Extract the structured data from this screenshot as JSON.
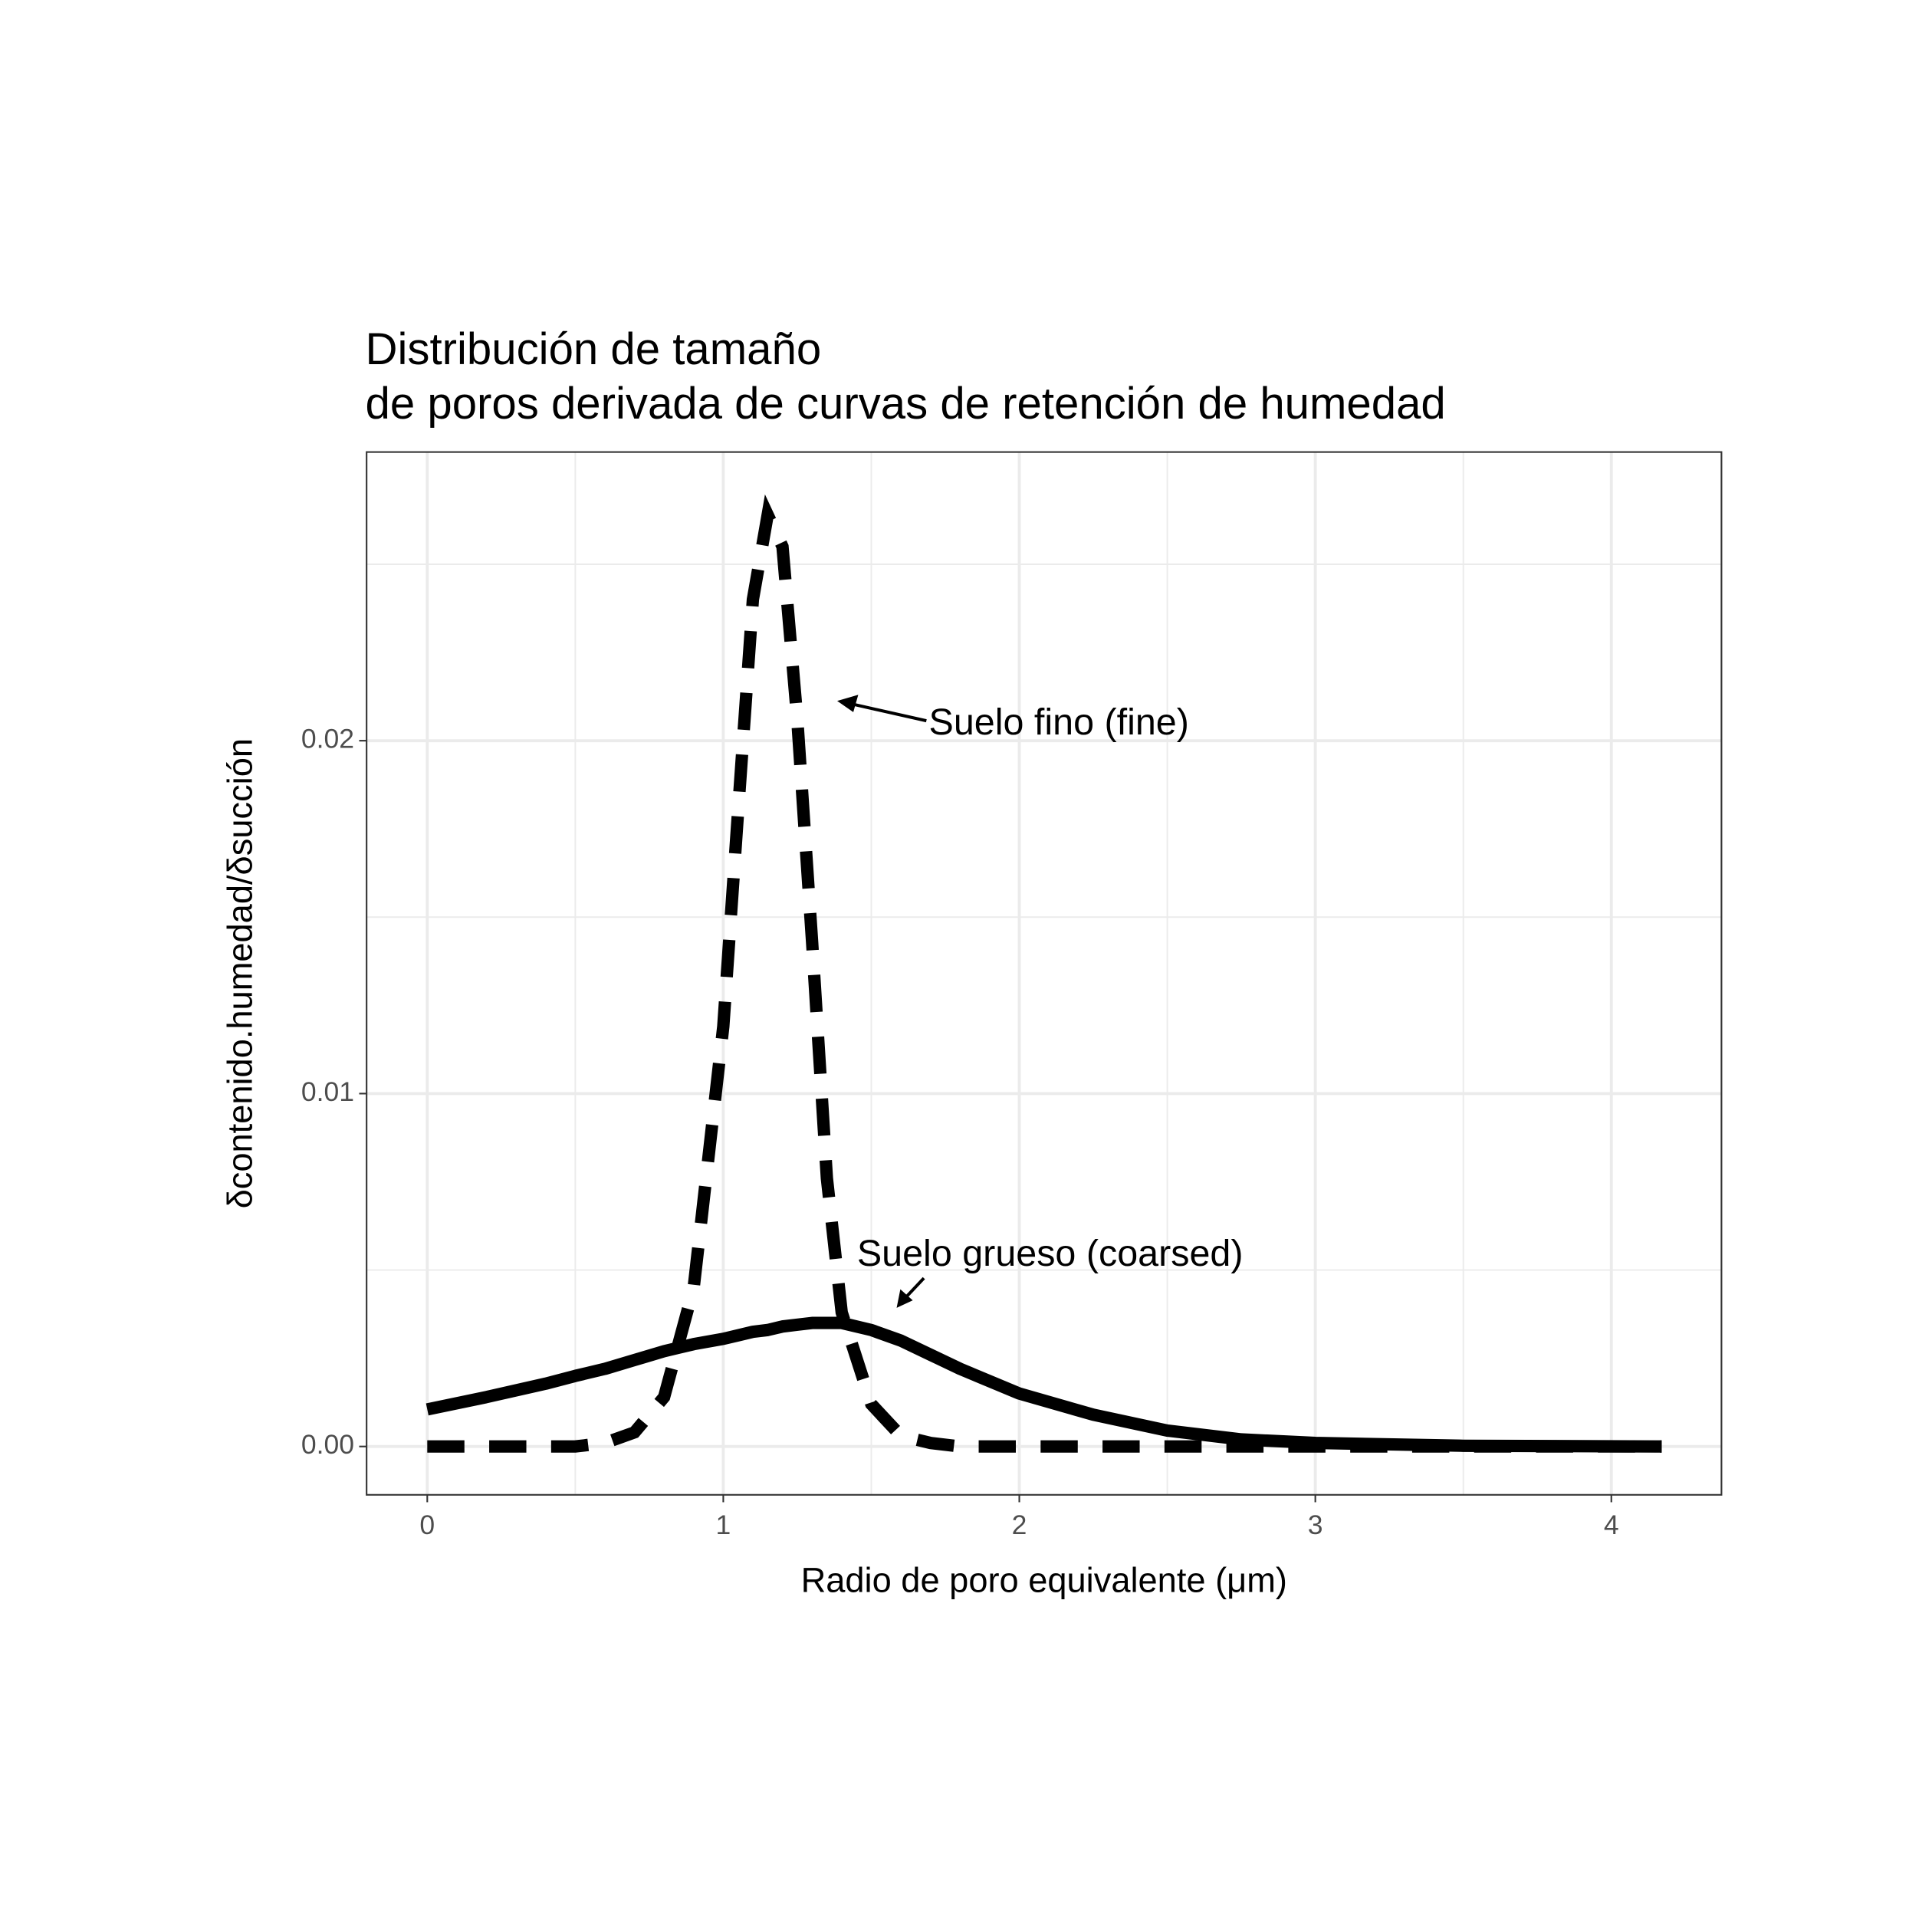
{
  "chart_data": {
    "type": "line",
    "title": [
      "Distribución de tamaño",
      "de poros derivada de curvas de retención de humedad"
    ],
    "xlabel": "Radio de poro equivalente (μm)",
    "ylabel": "δcontenido.humedad/δsucción",
    "x": [
      0,
      0.2,
      0.4,
      0.5,
      0.6,
      0.7,
      0.8,
      0.9,
      1.0,
      1.05,
      1.1,
      1.15,
      1.2,
      1.25,
      1.3,
      1.35,
      1.4,
      1.5,
      1.6,
      1.7,
      1.8,
      2.0,
      2.25,
      2.5,
      2.75,
      3.0,
      3.5,
      4.17
    ],
    "series": [
      {
        "color": "#000000",
        "dash": false,
        "values": [
          0.00105,
          0.0014,
          0.00178,
          0.002,
          0.0022,
          0.00245,
          0.0027,
          0.0029,
          0.00305,
          0.00315,
          0.00325,
          0.0033,
          0.0034,
          0.00345,
          0.0035,
          0.0035,
          0.0035,
          0.0033,
          0.003,
          0.0026,
          0.0022,
          0.0015,
          0.0009,
          0.00045,
          0.0002,
          0.0001,
          2e-05,
          0
        ]
      },
      {
        "color": "#000000",
        "dash": true,
        "values": [
          0,
          0,
          0,
          0,
          0.0001,
          0.0004,
          0.0014,
          0.0045,
          0.0119,
          0.018,
          0.024,
          0.0264,
          0.0255,
          0.0206,
          0.0143,
          0.0076,
          0.0038,
          0.0012,
          0.0003,
          0.0001,
          0,
          0,
          0,
          0,
          0,
          0,
          0,
          0
        ]
      }
    ],
    "annotations": [
      "Suelo fino (fine)",
      "Suelo grueso (coarsed)"
    ],
    "xlim": [
      -0.205,
      4.372
    ],
    "ylim": [
      -0.00137,
      0.02818
    ],
    "xticks": [
      0,
      1,
      2,
      3,
      4
    ],
    "yticks": [
      {
        "value": 0,
        "label": "0.00"
      },
      {
        "value": 0.01,
        "label": "0.01"
      },
      {
        "value": 0.02,
        "label": "0.02"
      }
    ],
    "grid": true,
    "minor_grid": true
  }
}
